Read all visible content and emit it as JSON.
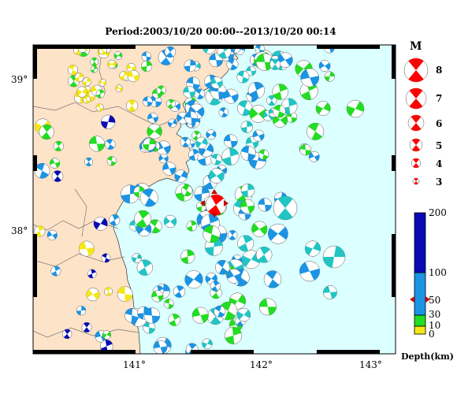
{
  "title": "Period:2003/10/20 00:00--2013/10/20 00:14",
  "axis": {
    "x_ticks": [
      "141°",
      "142°",
      "143°"
    ],
    "y_ticks": [
      "39°",
      "38°"
    ]
  },
  "legend": {
    "magnitude_title": "M",
    "magnitudes": [
      "8",
      "7",
      "6",
      "5",
      "4",
      "3"
    ],
    "depth_ticks": [
      "200",
      "100",
      "50",
      "30",
      "10",
      "0"
    ],
    "depth_title": "Depth(km)"
  },
  "colors": {
    "land": "#fde3c8",
    "sea": "#dcffff",
    "shallow": "#f5e616",
    "mid": "#22dd22",
    "deep": "#1b94e4",
    "very_deep_teal": "#22c4c4",
    "deepest": "#0a0ab4",
    "mainshock": "#ff0000"
  }
}
